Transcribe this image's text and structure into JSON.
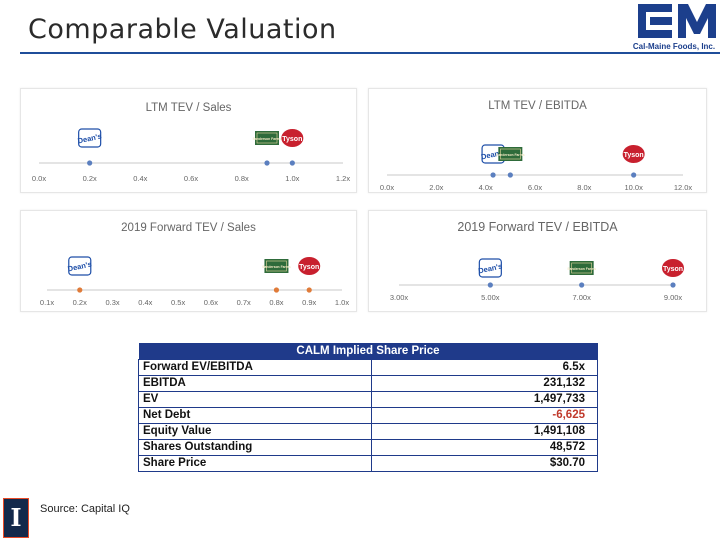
{
  "slide": {
    "title": "Comparable Valuation",
    "source": "Source: Capital IQ",
    "logo_caption": "Cal-Maine Foods, Inc.",
    "logo_mark": "CM",
    "university_mark": "I"
  },
  "colors": {
    "brand_blue": "#1f4e9a",
    "header_blue": "#1f3a8a",
    "negative_red": "#c0392b",
    "ticker_blue": "#5b7fbf",
    "ticker_orange": "#e07b39"
  },
  "companies": {
    "deans": {
      "label": "Dean's",
      "color": "#1d4ea8",
      "icon": "deans-logo-icon"
    },
    "sanderson": {
      "label": "Sanderson Farms",
      "color": "#2e6b3a",
      "icon": "sanderson-logo-icon"
    },
    "tyson": {
      "label": "Tyson",
      "color": "#c8202e",
      "icon": "tyson-logo-icon"
    }
  },
  "chart_data": [
    {
      "type": "scatter",
      "title": "LTM TEV / Sales",
      "xlim": [
        0.0,
        1.2
      ],
      "ticks": [
        "0.0x",
        "0.2x",
        "0.4x",
        "0.6x",
        "0.8x",
        "1.0x",
        "1.2x"
      ],
      "points": [
        {
          "company": "deans",
          "value": 0.2
        },
        {
          "company": "sanderson",
          "value": 0.9
        },
        {
          "company": "tyson",
          "value": 1.0
        }
      ]
    },
    {
      "type": "scatter",
      "title": "LTM TEV / EBITDA",
      "xlim": [
        0.0,
        12.0
      ],
      "ticks": [
        "0.0x",
        "2.0x",
        "4.0x",
        "6.0x",
        "8.0x",
        "10.0x",
        "12.0x"
      ],
      "points": [
        {
          "company": "deans",
          "value": 4.3
        },
        {
          "company": "sanderson",
          "value": 5.0
        },
        {
          "company": "tyson",
          "value": 10.0
        }
      ]
    },
    {
      "type": "scatter",
      "title": "2019 Forward TEV / Sales",
      "xlim": [
        0.1,
        1.0
      ],
      "ticks": [
        "0.1x",
        "0.2x",
        "0.3x",
        "0.4x",
        "0.5x",
        "0.6x",
        "0.7x",
        "0.8x",
        "0.9x",
        "1.0x"
      ],
      "points": [
        {
          "company": "deans",
          "value": 0.2
        },
        {
          "company": "sanderson",
          "value": 0.8
        },
        {
          "company": "tyson",
          "value": 0.9
        }
      ]
    },
    {
      "type": "scatter",
      "title": "2019 Forward TEV / EBITDA",
      "xlim": [
        3.0,
        9.0
      ],
      "ticks": [
        "3.00x",
        "5.00x",
        "7.00x",
        "9.00x"
      ],
      "points": [
        {
          "company": "deans",
          "value": 5.0
        },
        {
          "company": "sanderson",
          "value": 7.0
        },
        {
          "company": "tyson",
          "value": 9.0
        }
      ]
    }
  ],
  "table": {
    "header": "CALM Implied Share Price",
    "rows": [
      {
        "label": "Forward EV/EBITDA",
        "value": "6.5x",
        "negative": false
      },
      {
        "label": "EBITDA",
        "value": "231,132",
        "negative": false
      },
      {
        "label": "EV",
        "value": "1,497,733",
        "negative": false
      },
      {
        "label": "Net Debt",
        "value": "-6,625",
        "negative": true
      },
      {
        "label": "Equity Value",
        "value": "1,491,108",
        "negative": false
      },
      {
        "label": "Shares Outstanding",
        "value": "48,572",
        "negative": false
      },
      {
        "label": "Share Price",
        "value": "$30.70",
        "negative": false
      }
    ]
  }
}
